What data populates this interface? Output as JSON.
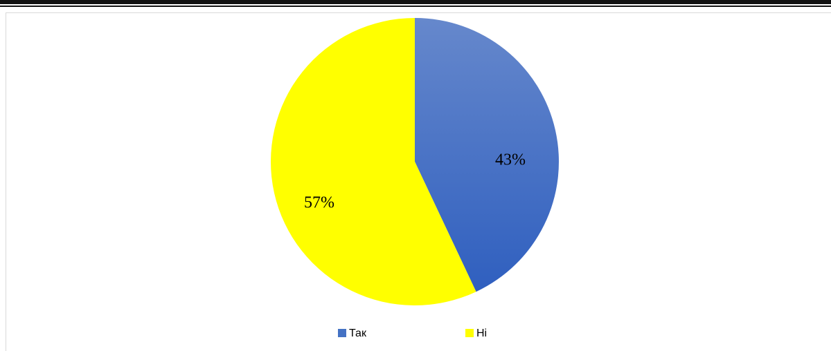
{
  "chart_data": {
    "type": "pie",
    "categories": [
      "Так",
      "Ні"
    ],
    "values": [
      43,
      57
    ],
    "value_labels": [
      "43%",
      "57%"
    ],
    "colors": [
      "#4472c4",
      "#ffff00"
    ]
  }
}
